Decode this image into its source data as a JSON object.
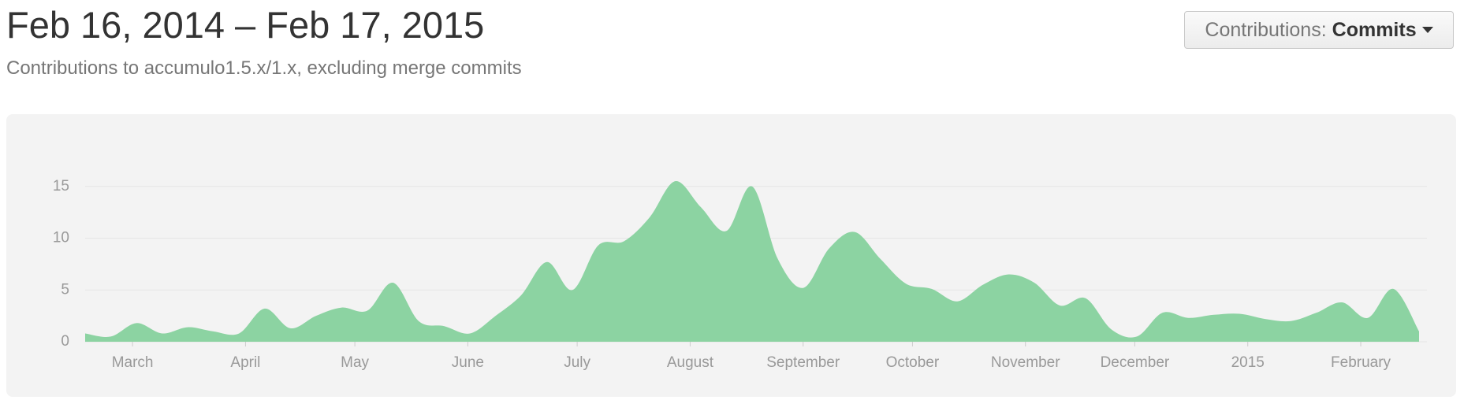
{
  "button": {
    "label": "Contributions:",
    "value": "Commits"
  },
  "chart_data": {
    "type": "area",
    "title": "Feb 16, 2014 – Feb 17, 2015",
    "subtitle": "Contributions to accumulo1.5.x/1.x, excluding merge commits",
    "xlim": [
      "2014-02-16",
      "2015-02-17"
    ],
    "xticks": [
      {
        "value": "2014-03",
        "label": "March"
      },
      {
        "value": "2014-04",
        "label": "April"
      },
      {
        "value": "2014-05",
        "label": "May"
      },
      {
        "value": "2014-06",
        "label": "June"
      },
      {
        "value": "2014-07",
        "label": "July"
      },
      {
        "value": "2014-08",
        "label": "August"
      },
      {
        "value": "2014-09",
        "label": "September"
      },
      {
        "value": "2014-10",
        "label": "October"
      },
      {
        "value": "2014-11",
        "label": "November"
      },
      {
        "value": "2014-12",
        "label": "December"
      },
      {
        "value": "2015-01",
        "label": "2015"
      },
      {
        "value": "2015-02",
        "label": "February"
      }
    ],
    "ylim": [
      0,
      20
    ],
    "yticks": [
      0,
      5,
      10,
      15
    ],
    "grid": true,
    "color": "#8cd3a2",
    "values": [
      0.8,
      0.5,
      1.8,
      0.8,
      1.4,
      1.0,
      0.8,
      3.2,
      1.3,
      2.5,
      3.3,
      3.0,
      5.7,
      2.0,
      1.5,
      0.8,
      2.5,
      4.5,
      7.7,
      5.0,
      9.3,
      9.7,
      12,
      15.5,
      13,
      10.7,
      15,
      8,
      5.2,
      9,
      10.6,
      8,
      5.6,
      5.1,
      3.9,
      5.5,
      6.5,
      5.7,
      3.5,
      4.2,
      1.2,
      0.5,
      2.8,
      2.3,
      2.6,
      2.7,
      2.2,
      2.0,
      2.8,
      3.8,
      2.3,
      5.1,
      1.0
    ]
  }
}
